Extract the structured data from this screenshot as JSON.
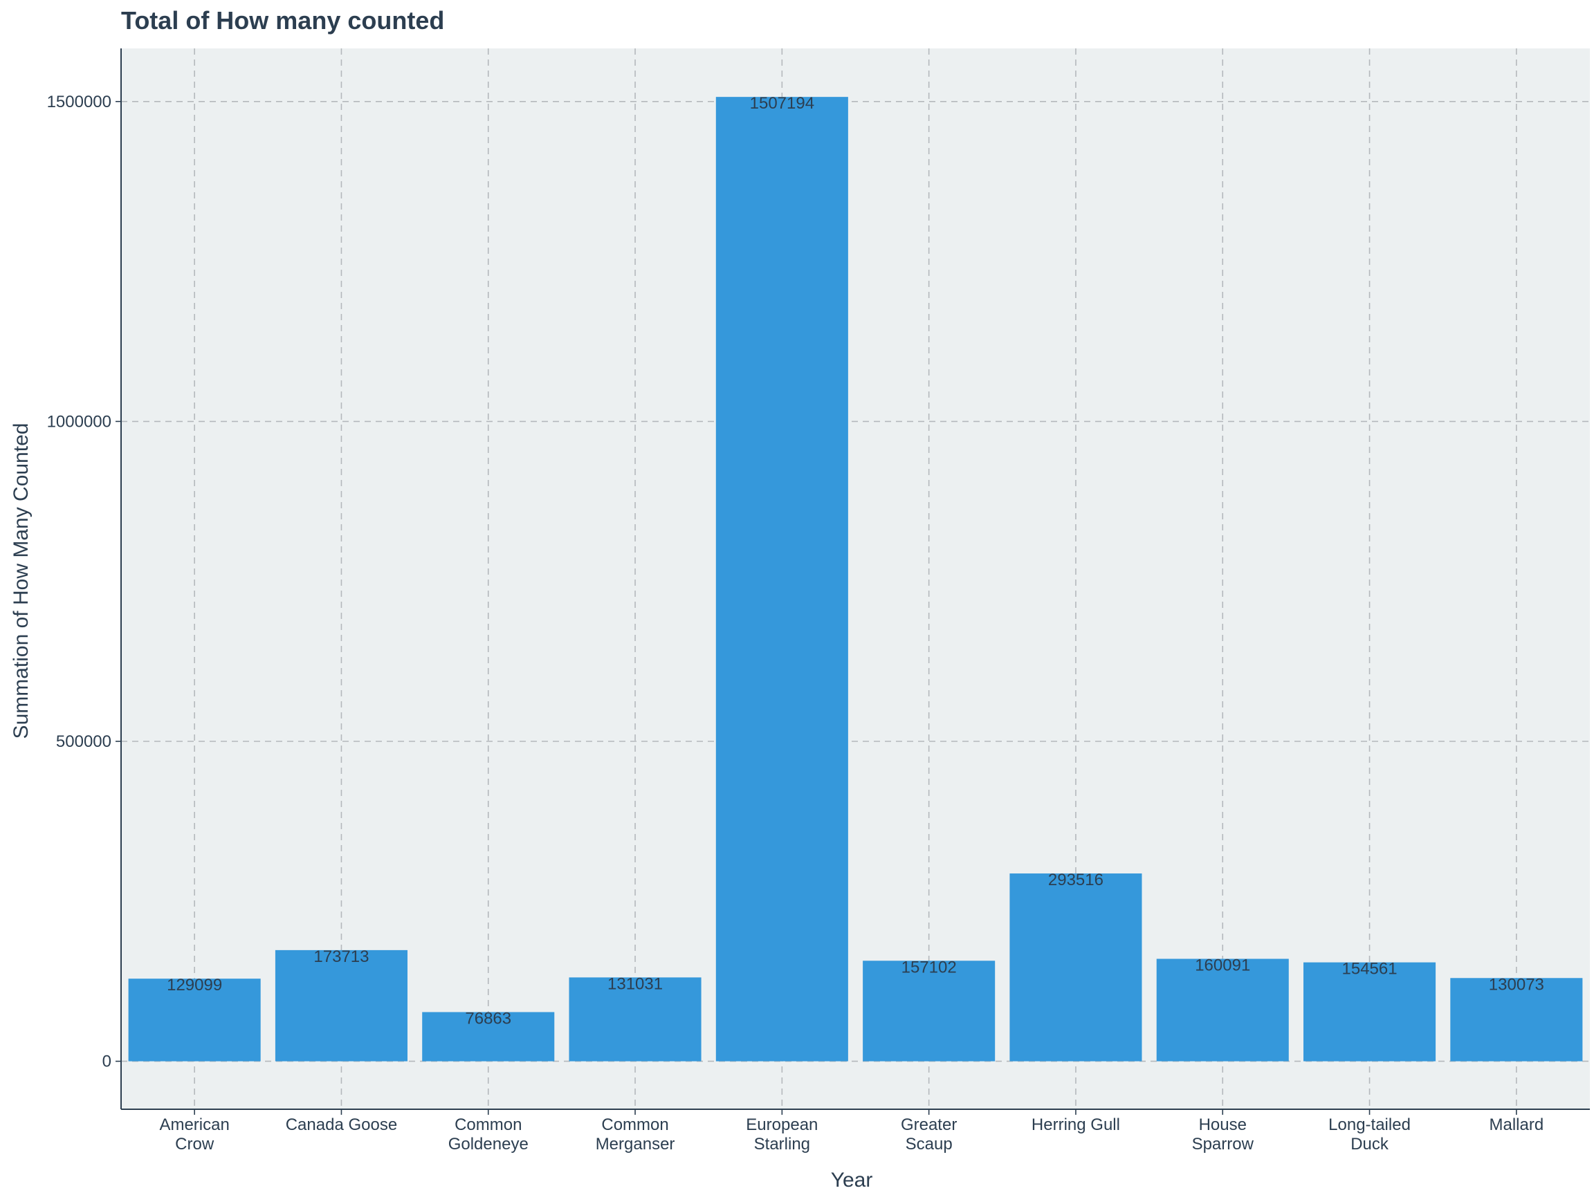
{
  "colors": {
    "panel": "#ecf0f1",
    "bar": "#3598db",
    "text": "#2c3e50",
    "grid": "#b4b8bc",
    "axis": "#2c3e50"
  },
  "chart_data": {
    "type": "bar",
    "title": "Total of How many counted",
    "xlabel": "Year",
    "ylabel": "Summation of How Many Counted",
    "categories": [
      [
        "American",
        "Crow"
      ],
      [
        "Canada Goose"
      ],
      [
        "Common",
        "Goldeneye"
      ],
      [
        "Common",
        "Merganser"
      ],
      [
        "European",
        "Starling"
      ],
      [
        "Greater",
        "Scaup"
      ],
      [
        "Herring Gull"
      ],
      [
        "House",
        "Sparrow"
      ],
      [
        "Long-tailed",
        "Duck"
      ],
      [
        "Mallard"
      ]
    ],
    "values": [
      129099,
      173713,
      76863,
      131031,
      1507194,
      157102,
      293516,
      160091,
      154561,
      130073
    ],
    "data_labels": [
      "129099",
      "173713",
      "76863",
      "131031",
      "1507194",
      "157102",
      "293516",
      "160091",
      "154561",
      "130073"
    ],
    "yticks": [
      0,
      500000,
      1000000,
      1500000
    ],
    "ytick_labels": [
      "0",
      "500000",
      "1000000",
      "1500000"
    ],
    "ylim": [
      -75000,
      1583000
    ],
    "grid": true,
    "legend": "none"
  }
}
